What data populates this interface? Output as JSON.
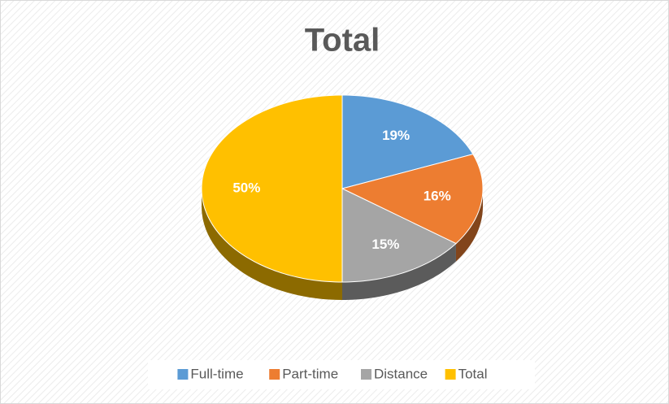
{
  "chart_data": {
    "type": "pie",
    "title": "Total",
    "categories": [
      "Full-time",
      "Part-time",
      "Distance",
      "Total"
    ],
    "values": [
      19,
      16,
      15,
      50
    ],
    "value_labels": [
      "19%",
      "16%",
      "15%",
      "50%"
    ],
    "colors": [
      "#5b9bd5",
      "#ed7d31",
      "#a5a5a5",
      "#ffc000"
    ],
    "legend": "bottom"
  }
}
